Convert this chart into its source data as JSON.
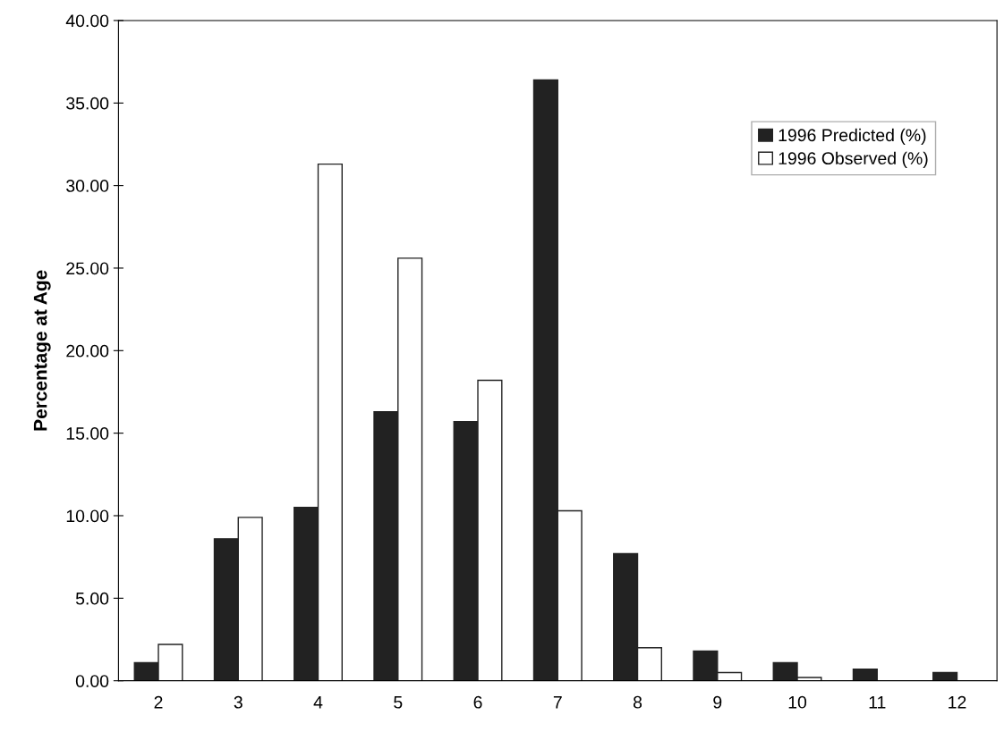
{
  "chart_data": {
    "type": "bar",
    "ylabel": "Percentage at Age",
    "categories": [
      "2",
      "3",
      "4",
      "5",
      "6",
      "7",
      "8",
      "9",
      "10",
      "11",
      "12"
    ],
    "series": [
      {
        "name": "1996 Predicted (%)",
        "color": "#222222",
        "values": [
          1.1,
          8.6,
          10.5,
          16.3,
          15.7,
          36.4,
          7.7,
          1.8,
          1.1,
          0.7,
          0.5
        ]
      },
      {
        "name": "1996 Observed (%)",
        "color": "#ffffff",
        "values": [
          2.2,
          9.9,
          31.3,
          25.6,
          18.2,
          10.3,
          2.0,
          0.5,
          0.2,
          null,
          null
        ]
      }
    ],
    "ylim": [
      0,
      40
    ],
    "yticks": [
      {
        "value": 0,
        "label": "0.00"
      },
      {
        "value": 5,
        "label": "5.00"
      },
      {
        "value": 10,
        "label": "10.00"
      },
      {
        "value": 15,
        "label": "15.00"
      },
      {
        "value": 20,
        "label": "20.00"
      },
      {
        "value": 25,
        "label": "25.00"
      },
      {
        "value": 30,
        "label": "30.00"
      },
      {
        "value": 35,
        "label": "35.00"
      },
      {
        "value": 40,
        "label": "40.00"
      }
    ],
    "grid": false,
    "legend": "top right"
  }
}
